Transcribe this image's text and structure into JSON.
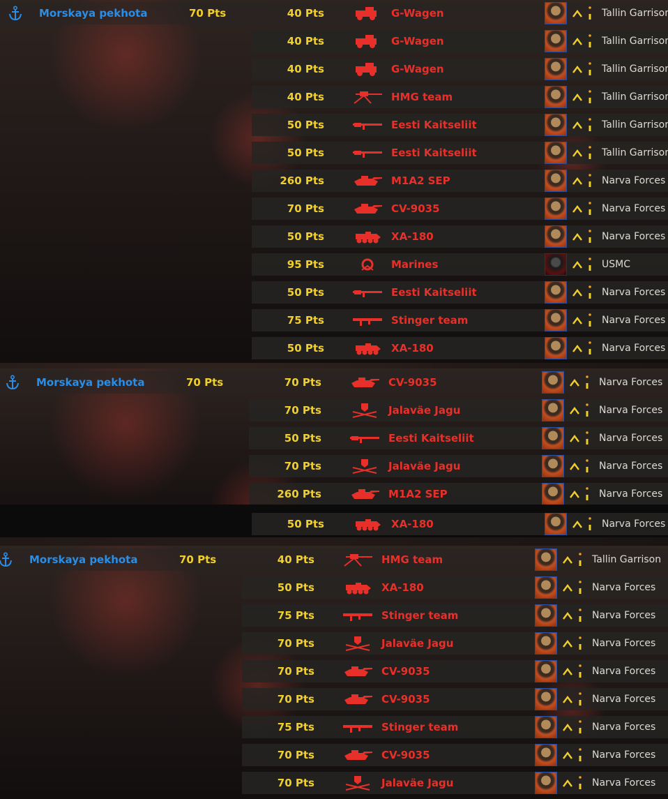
{
  "colors": {
    "group_name": "#2a8ee6",
    "points": "#f0cf2c",
    "unit_name": "#e8302a",
    "org": "#dcdcd4"
  },
  "groups": [
    {
      "icon": "anchor-icon",
      "name": "Morskaya pekhota",
      "points": "70 Pts",
      "units": [
        {
          "points": "40 Pts",
          "icon": "truck",
          "name": "G-Wagen",
          "portrait": "soldier",
          "org": "Tallin Garrison"
        },
        {
          "points": "40 Pts",
          "icon": "truck",
          "name": "G-Wagen",
          "portrait": "soldier",
          "org": "Tallin Garrison"
        },
        {
          "points": "40 Pts",
          "icon": "truck",
          "name": "G-Wagen",
          "portrait": "soldier",
          "org": "Tallin Garrison"
        },
        {
          "points": "40 Pts",
          "icon": "hmg",
          "name": "HMG team",
          "portrait": "soldier",
          "org": "Tallin Garrison"
        },
        {
          "points": "50 Pts",
          "icon": "rifle",
          "name": "Eesti Kaitseliit",
          "portrait": "soldier",
          "org": "Tallin Garrison"
        },
        {
          "points": "50 Pts",
          "icon": "rifle",
          "name": "Eesti Kaitseliit",
          "portrait": "soldier",
          "org": "Tallin Garrison"
        },
        {
          "points": "260 Pts",
          "icon": "tank",
          "name": "M1A2 SEP",
          "portrait": "soldier",
          "org": "Narva Forces"
        },
        {
          "points": "70 Pts",
          "icon": "tank",
          "name": "CV-9035",
          "portrait": "soldier",
          "org": "Narva Forces"
        },
        {
          "points": "50 Pts",
          "icon": "apc",
          "name": "XA-180",
          "portrait": "soldier",
          "org": "Narva Forces"
        },
        {
          "points": "95 Pts",
          "icon": "emblem",
          "name": "Marines",
          "portrait": "usmc",
          "org": "USMC"
        },
        {
          "points": "50 Pts",
          "icon": "rifle",
          "name": "Eesti Kaitseliit",
          "portrait": "soldier",
          "org": "Narva Forces"
        },
        {
          "points": "75 Pts",
          "icon": "launcher",
          "name": "Stinger team",
          "portrait": "soldier",
          "org": "Narva Forces"
        },
        {
          "points": "50 Pts",
          "icon": "apc",
          "name": "XA-180",
          "portrait": "soldier",
          "org": "Narva Forces"
        }
      ]
    },
    {
      "icon": "anchor-icon",
      "name": "Morskaya pekhota",
      "points": "70 Pts",
      "units": [
        {
          "points": "70 Pts",
          "icon": "tank",
          "name": "CV-9035",
          "portrait": "soldier",
          "org": "Narva Forces"
        },
        {
          "points": "70 Pts",
          "icon": "shield",
          "name": "Jalaväe Jagu",
          "portrait": "soldier",
          "org": "Narva Forces"
        },
        {
          "points": "50 Pts",
          "icon": "rifle",
          "name": "Eesti Kaitseliit",
          "portrait": "soldier",
          "org": "Narva Forces"
        },
        {
          "points": "70 Pts",
          "icon": "shield",
          "name": "Jalaväe Jagu",
          "portrait": "soldier",
          "org": "Narva Forces"
        },
        {
          "points": "260 Pts",
          "icon": "tank",
          "name": "M1A2 SEP",
          "portrait": "soldier",
          "org": "Narva Forces"
        },
        {
          "points": "50 Pts",
          "icon": "apc",
          "name": "XA-180",
          "portrait": "soldier",
          "org": "Narva Forces"
        }
      ]
    },
    {
      "icon": "anchor-icon",
      "name": "Morskaya pekhota",
      "points": "70 Pts",
      "units": [
        {
          "points": "40 Pts",
          "icon": "hmg",
          "name": "HMG team",
          "portrait": "soldier",
          "org": "Tallin Garrison"
        },
        {
          "points": "50 Pts",
          "icon": "apc",
          "name": "XA-180",
          "portrait": "soldier",
          "org": "Narva Forces"
        },
        {
          "points": "75 Pts",
          "icon": "launcher",
          "name": "Stinger team",
          "portrait": "soldier",
          "org": "Narva Forces"
        },
        {
          "points": "70 Pts",
          "icon": "shield",
          "name": "Jalaväe Jagu",
          "portrait": "soldier",
          "org": "Narva Forces"
        },
        {
          "points": "70 Pts",
          "icon": "tank",
          "name": "CV-9035",
          "portrait": "soldier",
          "org": "Narva Forces"
        },
        {
          "points": "70 Pts",
          "icon": "tank",
          "name": "CV-9035",
          "portrait": "soldier",
          "org": "Narva Forces"
        },
        {
          "points": "75 Pts",
          "icon": "launcher",
          "name": "Stinger team",
          "portrait": "soldier",
          "org": "Narva Forces"
        },
        {
          "points": "70 Pts",
          "icon": "tank",
          "name": "CV-9035",
          "portrait": "soldier",
          "org": "Narva Forces"
        },
        {
          "points": "70 Pts",
          "icon": "shield",
          "name": "Jalaväe Jagu",
          "portrait": "soldier",
          "org": "Narva Forces"
        }
      ]
    }
  ]
}
